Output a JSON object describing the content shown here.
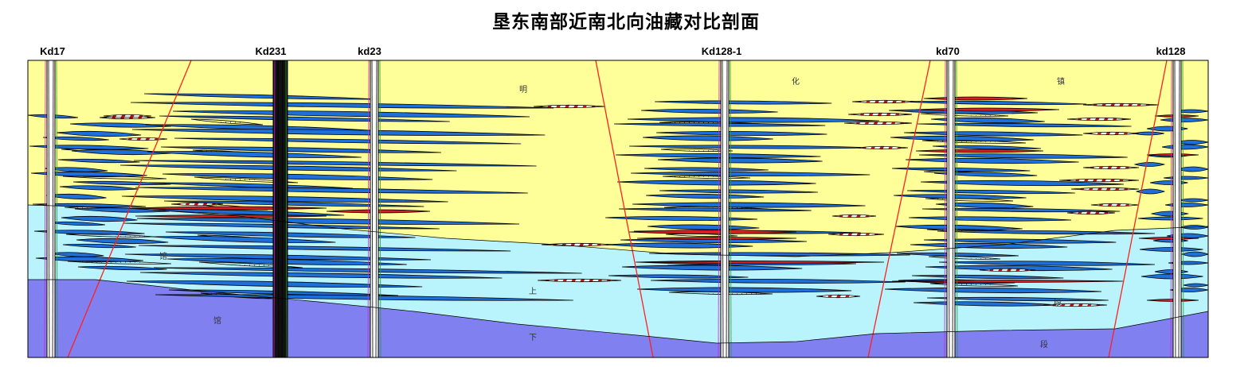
{
  "title": "垦东南部近南北向油藏对比剖面",
  "wells": [
    "Kd17",
    "Kd231",
    "kd23",
    "Kd128-1",
    "kd70",
    "kd128"
  ],
  "strata": [
    "明",
    "化",
    "镇",
    "馆",
    "上",
    "段",
    "馆",
    "下",
    "段"
  ],
  "colors": {
    "upper_unit": "#ffff99",
    "middle_unit": "#b9f3fb",
    "lower_unit": "#8080f0",
    "sand_water": "#1f6fd8",
    "sand_oil": "#d81e1e",
    "fault": "#ff2020",
    "well_track": "#000000"
  }
}
